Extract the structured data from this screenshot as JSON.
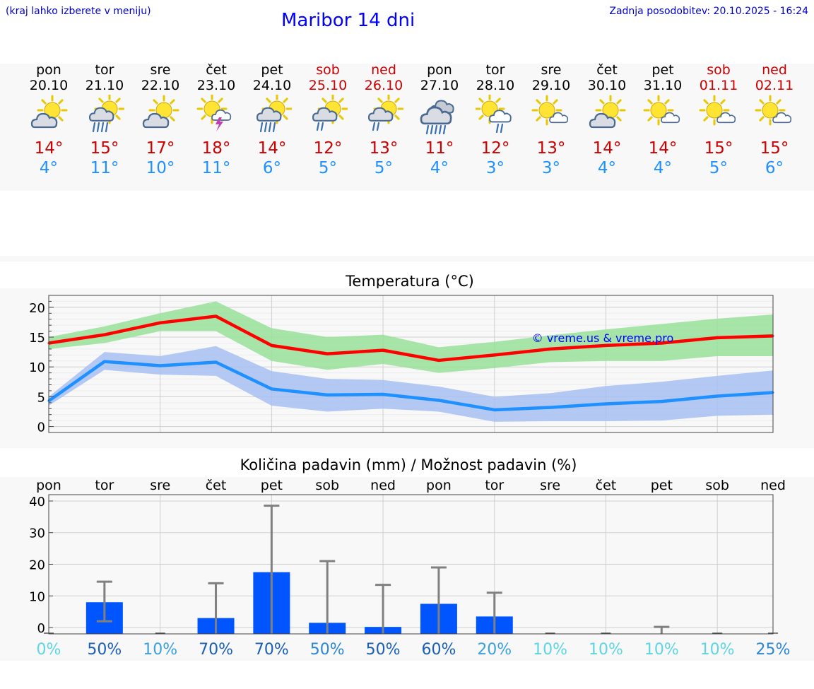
{
  "header": {
    "hint": "(kraj lahko izberete v meniju)",
    "title": "Maribor 14 dni",
    "updated": "Zadnja posodobitev: 20.10.2025 - 16:24"
  },
  "days": [
    {
      "name": "pon",
      "date": "20.10",
      "weekend": false,
      "icon": "partly-cloudy-icon",
      "max": "14°",
      "min": "4°"
    },
    {
      "name": "tor",
      "date": "21.10",
      "weekend": false,
      "icon": "cloudy-rain-icon",
      "max": "15°",
      "min": "11°"
    },
    {
      "name": "sre",
      "date": "22.10",
      "weekend": false,
      "icon": "partly-cloudy-icon",
      "max": "17°",
      "min": "10°"
    },
    {
      "name": "čet",
      "date": "23.10",
      "weekend": false,
      "icon": "sun-thunder-icon",
      "max": "18°",
      "min": "11°"
    },
    {
      "name": "pet",
      "date": "24.10",
      "weekend": false,
      "icon": "cloudy-rain-icon",
      "max": "14°",
      "min": "6°"
    },
    {
      "name": "sob",
      "date": "25.10",
      "weekend": true,
      "icon": "light-rain-icon",
      "max": "12°",
      "min": "5°"
    },
    {
      "name": "ned",
      "date": "26.10",
      "weekend": true,
      "icon": "light-rain-icon",
      "max": "13°",
      "min": "5°"
    },
    {
      "name": "pon",
      "date": "27.10",
      "weekend": false,
      "icon": "overcast-rain-icon",
      "max": "11°",
      "min": "4°"
    },
    {
      "name": "tor",
      "date": "28.10",
      "weekend": false,
      "icon": "sun-light-rain-icon",
      "max": "12°",
      "min": "3°"
    },
    {
      "name": "sre",
      "date": "29.10",
      "weekend": false,
      "icon": "sun-small-cloud-icon",
      "max": "13°",
      "min": "3°"
    },
    {
      "name": "čet",
      "date": "30.10",
      "weekend": false,
      "icon": "partly-cloudy-icon",
      "max": "14°",
      "min": "4°"
    },
    {
      "name": "pet",
      "date": "31.10",
      "weekend": false,
      "icon": "sun-small-cloud-icon",
      "max": "14°",
      "min": "4°"
    },
    {
      "name": "sob",
      "date": "01.11",
      "weekend": true,
      "icon": "sun-small-cloud-icon",
      "max": "15°",
      "min": "5°"
    },
    {
      "name": "ned",
      "date": "02.11",
      "weekend": true,
      "icon": "sun-small-cloud-icon",
      "max": "15°",
      "min": "6°"
    }
  ],
  "chart_data": [
    {
      "type": "line",
      "title": "Temperatura (°C)",
      "watermark": "© vreme.us & vreme.pro",
      "x": [
        "20.10",
        "21.10",
        "22.10",
        "23.10",
        "24.10",
        "25.10",
        "26.10",
        "27.10",
        "28.10",
        "29.10",
        "30.10",
        "31.10",
        "01.11",
        "02.11"
      ],
      "ylim": [
        -1,
        22
      ],
      "yticks": [
        0,
        5,
        10,
        15,
        20
      ],
      "series": [
        {
          "name": "max",
          "color": "#ff0000",
          "values": [
            14.0,
            15.4,
            17.4,
            18.5,
            13.6,
            12.2,
            12.8,
            11.1,
            12.0,
            13.0,
            13.6,
            14.0,
            14.9,
            15.2
          ],
          "band_low": [
            13.0,
            14.0,
            16.0,
            16.0,
            11.0,
            9.5,
            10.5,
            9.0,
            9.8,
            10.8,
            11.0,
            11.0,
            11.8,
            11.8
          ],
          "band_high": [
            15.0,
            16.8,
            19.0,
            21.0,
            16.5,
            15.0,
            15.4,
            13.3,
            14.2,
            15.3,
            16.3,
            17.2,
            18.1,
            18.8
          ],
          "band_color": "#99e199"
        },
        {
          "name": "min",
          "color": "#1e90ff",
          "values": [
            4.3,
            10.9,
            10.2,
            10.8,
            6.3,
            5.3,
            5.4,
            4.4,
            2.8,
            3.2,
            3.8,
            4.2,
            5.1,
            5.7
          ],
          "band_low": [
            3.5,
            9.5,
            8.7,
            8.5,
            3.5,
            2.5,
            3.0,
            2.5,
            0.8,
            0.9,
            0.9,
            1.0,
            1.8,
            2.0
          ],
          "band_high": [
            5.0,
            12.5,
            11.8,
            13.5,
            9.3,
            8.0,
            7.8,
            6.7,
            5.0,
            5.6,
            6.8,
            7.5,
            8.5,
            9.4
          ],
          "band_color": "#a7c0f2"
        }
      ]
    },
    {
      "type": "bar",
      "title": "Količina padavin (mm) / Možnost padavin (%)",
      "categories": [
        "pon",
        "tor",
        "sre",
        "čet",
        "pet",
        "sob",
        "ned",
        "pon",
        "tor",
        "sre",
        "čet",
        "pet",
        "sob",
        "ned"
      ],
      "ylim": [
        -2,
        42
      ],
      "yticks": [
        0,
        10,
        20,
        30,
        40
      ],
      "values": [
        0,
        8.0,
        0,
        3.0,
        17.5,
        1.5,
        0.2,
        7.5,
        3.5,
        0,
        0,
        0,
        0,
        0
      ],
      "error_low": [
        0,
        2.0,
        0,
        0,
        0,
        0,
        0,
        0,
        0,
        0,
        0,
        0,
        0,
        0
      ],
      "error_high": [
        0,
        14.5,
        0,
        14.0,
        38.5,
        21.0,
        13.5,
        19.0,
        11.0,
        0,
        0,
        0.2,
        0,
        0
      ],
      "chance_labels": [
        "0%",
        "50%",
        "10%",
        "70%",
        "70%",
        "50%",
        "50%",
        "60%",
        "20%",
        "10%",
        "10%",
        "10%",
        "10%",
        "25%"
      ],
      "chance_colors": [
        "#5dd5e3",
        "#1a5fb5",
        "#3aa0e0",
        "#1a5fb5",
        "#1a5fb5",
        "#2b86d5",
        "#1a5fb5",
        "#1a5fb5",
        "#3aa0e0",
        "#5dd5e3",
        "#5dd5e3",
        "#5dd5e3",
        "#5dd5e3",
        "#2b86d5"
      ],
      "bar_color": "#0055ff",
      "error_color": "#808080"
    }
  ]
}
